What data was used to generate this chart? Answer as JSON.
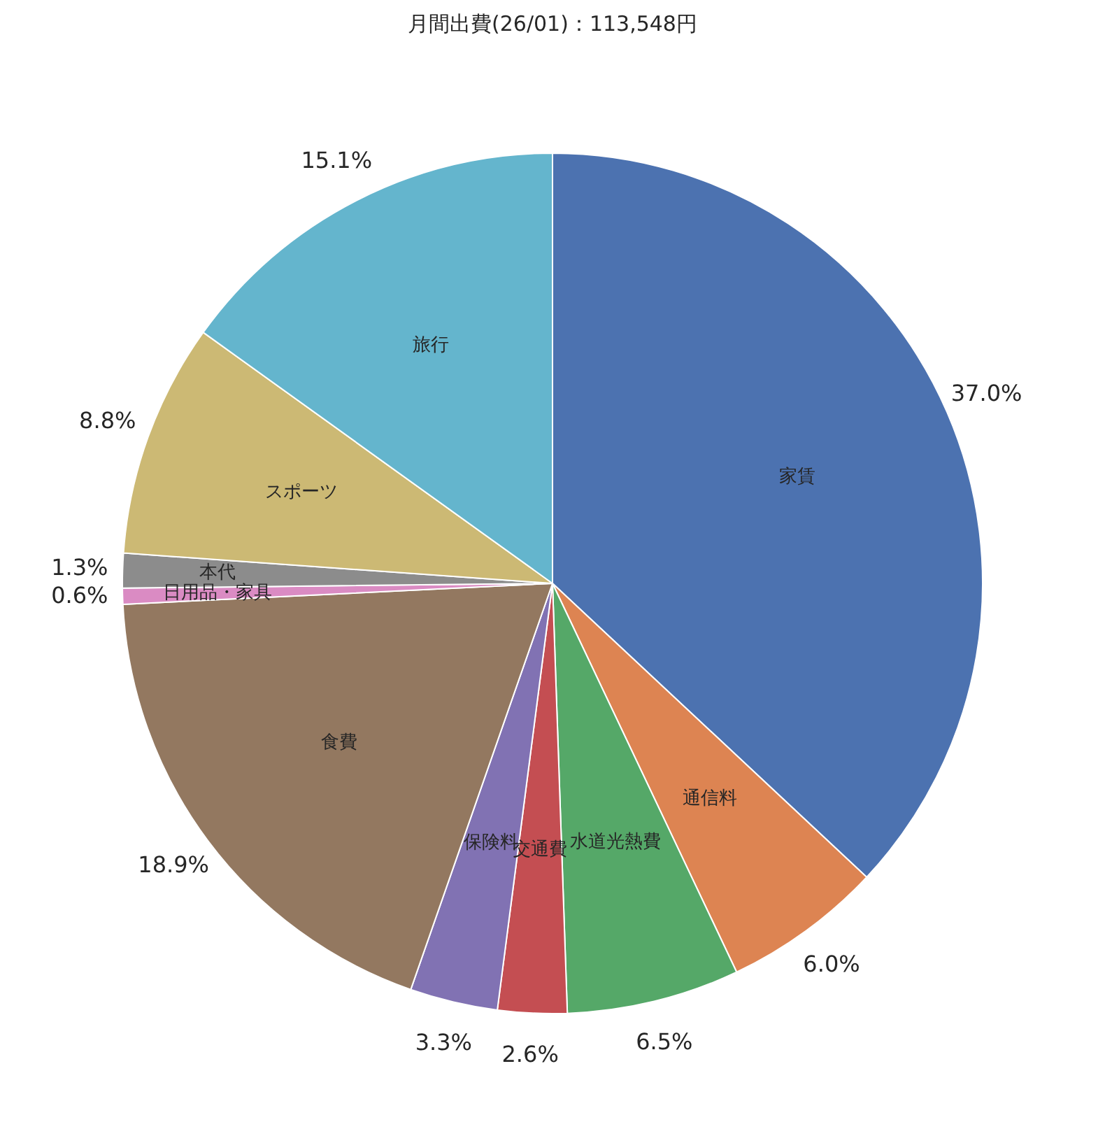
{
  "chart_data": {
    "type": "pie",
    "title": "月間出費(26/01)：113,548円",
    "categories": [
      "家賃",
      "通信料",
      "水道光熱費",
      "交通費",
      "保険料",
      "食費",
      "日用品・家具",
      "本代",
      "スポーツ",
      "旅行"
    ],
    "values": [
      37.0,
      6.0,
      6.5,
      2.6,
      3.3,
      18.9,
      0.6,
      1.3,
      8.8,
      15.1
    ],
    "value_labels": [
      "37.0%",
      "6.0%",
      "6.5%",
      "2.6%",
      "3.3%",
      "18.9%",
      "0.6%",
      "1.3%",
      "8.8%",
      "15.1%"
    ],
    "colors": [
      "#4c72b0",
      "#dd8452",
      "#55a868",
      "#c44e52",
      "#8172b3",
      "#937860",
      "#da8bc3",
      "#8c8c8c",
      "#ccb974",
      "#64b5cd"
    ],
    "legend": false
  }
}
